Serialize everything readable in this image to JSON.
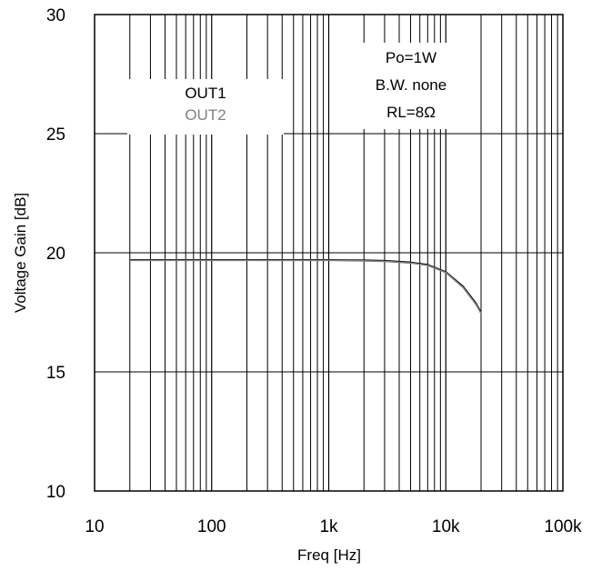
{
  "chart_data": {
    "type": "line",
    "xscale": "log",
    "xlim": [
      10,
      100000
    ],
    "ylim": [
      10,
      30
    ],
    "xlabel": "Freq [Hz]",
    "ylabel": "Voltage Gain [dB]",
    "xticks": [
      {
        "value": 10,
        "label": "10"
      },
      {
        "value": 100,
        "label": "100"
      },
      {
        "value": 1000,
        "label": "1k"
      },
      {
        "value": 10000,
        "label": "10k"
      },
      {
        "value": 100000,
        "label": "100k"
      }
    ],
    "yticks": [
      {
        "value": 10,
        "label": "10"
      },
      {
        "value": 15,
        "label": "15"
      },
      {
        "value": 20,
        "label": "20"
      },
      {
        "value": 25,
        "label": "25"
      },
      {
        "value": 30,
        "label": "30"
      }
    ],
    "grid": true,
    "annotations": [
      "Po=1W",
      "B.W. none",
      "RL=8Ω"
    ],
    "legend": {
      "position": "top-left"
    },
    "series": [
      {
        "name": "OUT1",
        "color": "#000000",
        "x": [
          20,
          50,
          100,
          200,
          500,
          1000,
          2000,
          3000,
          5000,
          7000,
          10000,
          14000,
          18000,
          20000
        ],
        "y": [
          19.7,
          19.7,
          19.7,
          19.7,
          19.7,
          19.7,
          19.69,
          19.67,
          19.6,
          19.5,
          19.2,
          18.6,
          17.9,
          17.5
        ]
      },
      {
        "name": "OUT2",
        "color": "#808080",
        "x": [
          20,
          50,
          100,
          200,
          500,
          1000,
          2000,
          3000,
          5000,
          7000,
          10000,
          14000,
          18000,
          20000
        ],
        "y": [
          19.68,
          19.68,
          19.68,
          19.68,
          19.68,
          19.68,
          19.66,
          19.64,
          19.57,
          19.47,
          19.17,
          18.55,
          17.85,
          17.45
        ]
      }
    ]
  }
}
